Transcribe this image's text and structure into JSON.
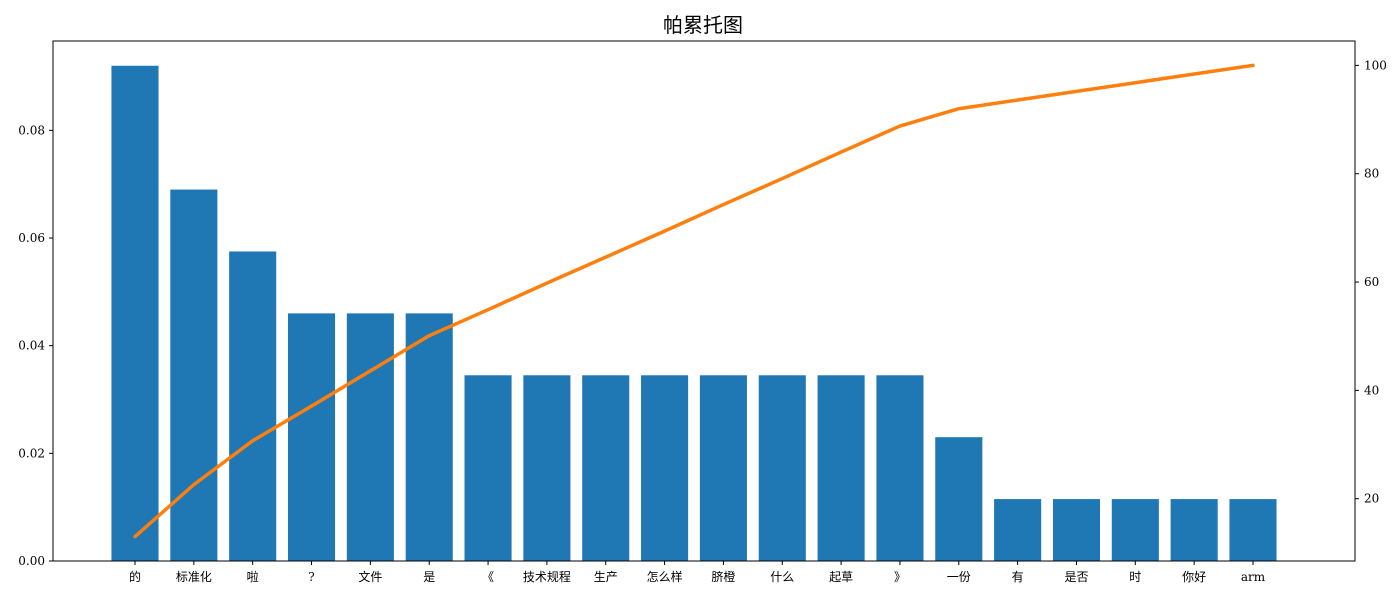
{
  "chart_data": {
    "type": "bar",
    "title": "帕累托图",
    "xlabel": "",
    "ylabel": "",
    "categories": [
      "的",
      "标准化",
      "啦",
      "?",
      "文件",
      "是",
      "《",
      "技术规程",
      "生产",
      "怎么样",
      "脐橙",
      "什么",
      "起草",
      "》",
      "一份",
      "有",
      "是否",
      "时",
      "你好",
      "arm"
    ],
    "values": [
      0.092,
      0.069,
      0.0575,
      0.046,
      0.046,
      0.046,
      0.0345,
      0.0345,
      0.0345,
      0.0345,
      0.0345,
      0.0345,
      0.0345,
      0.0345,
      0.023,
      0.0115,
      0.0115,
      0.0115,
      0.0115,
      0.0115
    ],
    "ylim": [
      0,
      0.0966
    ],
    "yticks": [
      "0.00",
      "0.02",
      "0.04",
      "0.06",
      "0.08"
    ],
    "line": {
      "values": [
        13.0,
        22.6,
        30.7,
        37.1,
        43.6,
        50.1,
        54.9,
        59.8,
        64.6,
        69.4,
        74.3,
        79.1,
        84.0,
        88.8,
        92.0,
        93.6,
        95.2,
        96.8,
        98.4,
        100.0
      ],
      "ylim": [
        8.5,
        104.5
      ],
      "yticks": [
        "20",
        "40",
        "60",
        "80",
        "100"
      ]
    },
    "grid": false,
    "colors": {
      "bar": "#1f77b4",
      "line": "#ff7f0e"
    }
  }
}
